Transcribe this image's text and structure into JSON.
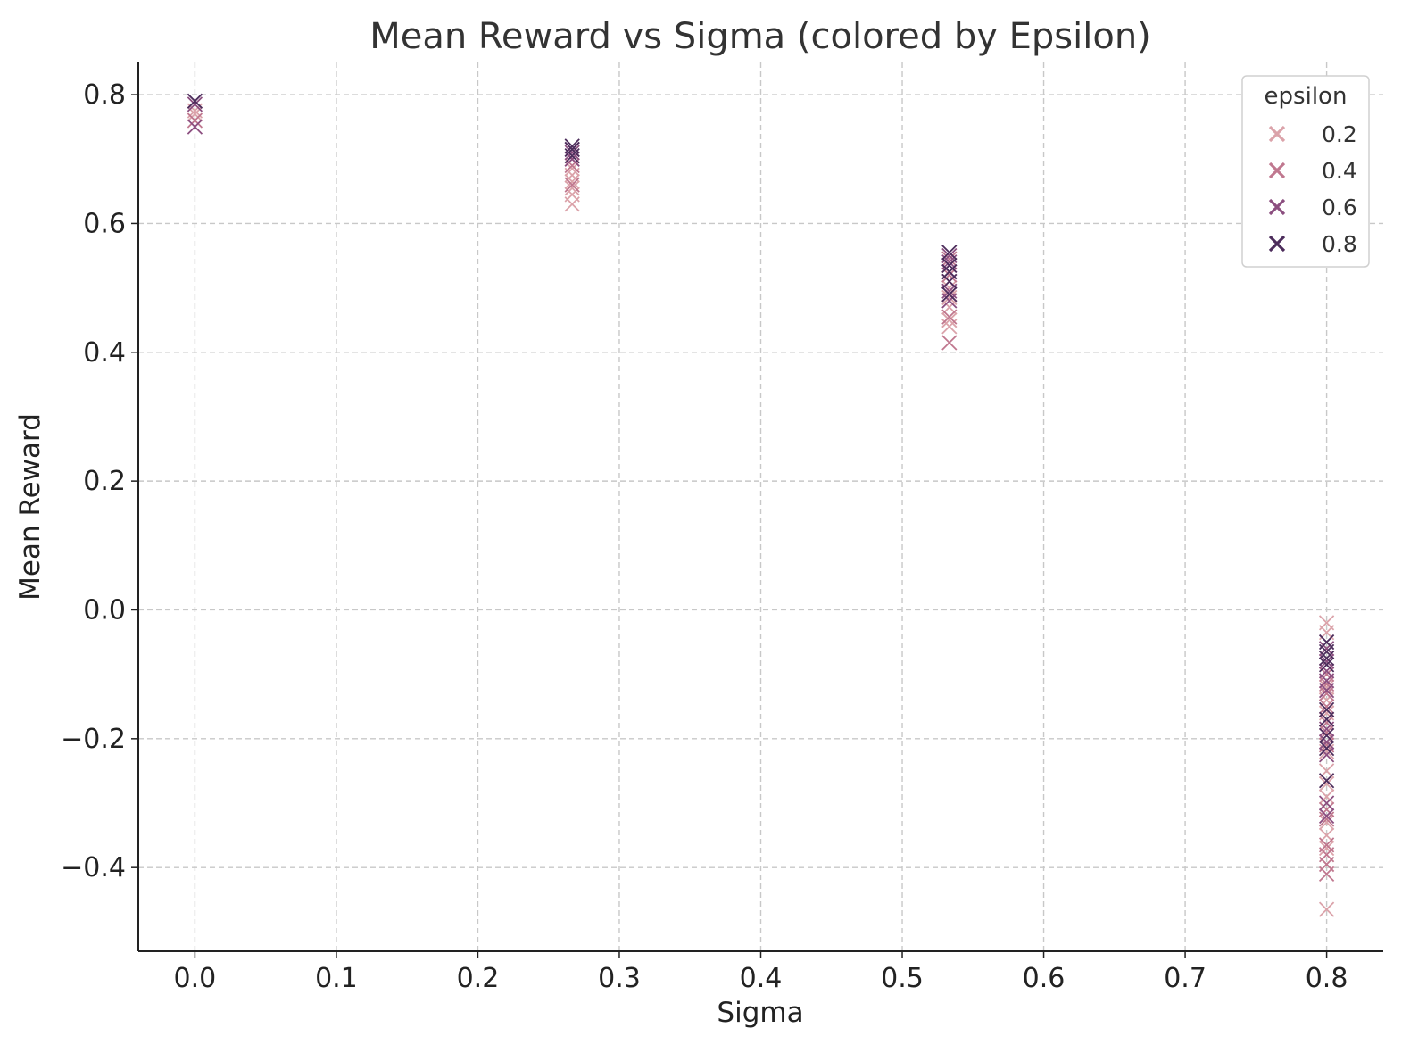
{
  "chart_data": {
    "type": "scatter",
    "title": "Mean Reward vs Sigma (colored by Epsilon)",
    "xlabel": "Sigma",
    "ylabel": "Mean Reward",
    "xlim": [
      -0.04,
      0.84
    ],
    "ylim": [
      -0.53,
      0.85
    ],
    "x_ticks": [
      0.0,
      0.1,
      0.2,
      0.3,
      0.4,
      0.5,
      0.6,
      0.7,
      0.8
    ],
    "x_tick_labels": [
      "0.0",
      "0.1",
      "0.2",
      "0.3",
      "0.4",
      "0.5",
      "0.6",
      "0.7",
      "0.8"
    ],
    "y_ticks": [
      -0.4,
      -0.2,
      0.0,
      0.2,
      0.4,
      0.6,
      0.8
    ],
    "y_tick_labels": [
      "−0.4",
      "−0.2",
      "0.0",
      "0.2",
      "0.4",
      "0.6",
      "0.8"
    ],
    "grid": true,
    "marker": "x",
    "legend": {
      "title": "epsilon",
      "position": "top-right"
    },
    "series": [
      {
        "name": "0.2",
        "color": "#dba3aa",
        "points": [
          [
            0.0,
            0.775
          ],
          [
            0.0,
            0.77
          ],
          [
            0.2667,
            0.63
          ],
          [
            0.2667,
            0.645
          ],
          [
            0.2667,
            0.655
          ],
          [
            0.2667,
            0.665
          ],
          [
            0.2667,
            0.675
          ],
          [
            0.2667,
            0.685
          ],
          [
            0.5333,
            0.44
          ],
          [
            0.5333,
            0.45
          ],
          [
            0.5333,
            0.47
          ],
          [
            0.5333,
            0.485
          ],
          [
            0.5333,
            0.5
          ],
          [
            0.5333,
            0.51
          ],
          [
            0.8,
            -0.02
          ],
          [
            0.8,
            -0.035
          ],
          [
            0.8,
            -0.12
          ],
          [
            0.8,
            -0.14
          ],
          [
            0.8,
            -0.16
          ],
          [
            0.8,
            -0.22
          ],
          [
            0.8,
            -0.25
          ],
          [
            0.8,
            -0.27
          ],
          [
            0.8,
            -0.29
          ],
          [
            0.8,
            -0.33
          ],
          [
            0.8,
            -0.35
          ],
          [
            0.8,
            -0.37
          ],
          [
            0.8,
            -0.465
          ]
        ]
      },
      {
        "name": "0.4",
        "color": "#c0788f",
        "points": [
          [
            0.0,
            0.76
          ],
          [
            0.2667,
            0.66
          ],
          [
            0.2667,
            0.69
          ],
          [
            0.2667,
            0.7
          ],
          [
            0.5333,
            0.415
          ],
          [
            0.5333,
            0.455
          ],
          [
            0.5333,
            0.49
          ],
          [
            0.5333,
            0.52
          ],
          [
            0.5333,
            0.535
          ],
          [
            0.5333,
            0.545
          ],
          [
            0.8,
            -0.1
          ],
          [
            0.8,
            -0.115
          ],
          [
            0.8,
            -0.13
          ],
          [
            0.8,
            -0.15
          ],
          [
            0.8,
            -0.175
          ],
          [
            0.8,
            -0.19
          ],
          [
            0.8,
            -0.21
          ],
          [
            0.8,
            -0.31
          ],
          [
            0.8,
            -0.325
          ],
          [
            0.8,
            -0.365
          ],
          [
            0.8,
            -0.38
          ],
          [
            0.8,
            -0.395
          ],
          [
            0.8,
            -0.41
          ]
        ]
      },
      {
        "name": "0.6",
        "color": "#8c4f80",
        "points": [
          [
            0.0,
            0.75
          ],
          [
            0.0,
            0.785
          ],
          [
            0.2667,
            0.7
          ],
          [
            0.2667,
            0.71
          ],
          [
            0.2667,
            0.715
          ],
          [
            0.5333,
            0.48
          ],
          [
            0.5333,
            0.495
          ],
          [
            0.5333,
            0.525
          ],
          [
            0.5333,
            0.54
          ],
          [
            0.5333,
            0.55
          ],
          [
            0.8,
            -0.06
          ],
          [
            0.8,
            -0.08
          ],
          [
            0.8,
            -0.095
          ],
          [
            0.8,
            -0.11
          ],
          [
            0.8,
            -0.125
          ],
          [
            0.8,
            -0.185
          ],
          [
            0.8,
            -0.205
          ],
          [
            0.8,
            -0.225
          ],
          [
            0.8,
            -0.3
          ],
          [
            0.8,
            -0.32
          ]
        ]
      },
      {
        "name": "0.8",
        "color": "#4d2d5c",
        "points": [
          [
            0.0,
            0.79
          ],
          [
            0.2667,
            0.705
          ],
          [
            0.2667,
            0.715
          ],
          [
            0.2667,
            0.72
          ],
          [
            0.5333,
            0.49
          ],
          [
            0.5333,
            0.51
          ],
          [
            0.5333,
            0.525
          ],
          [
            0.5333,
            0.535
          ],
          [
            0.5333,
            0.555
          ],
          [
            0.8,
            -0.05
          ],
          [
            0.8,
            -0.065
          ],
          [
            0.8,
            -0.075
          ],
          [
            0.8,
            -0.085
          ],
          [
            0.8,
            -0.155
          ],
          [
            0.8,
            -0.17
          ],
          [
            0.8,
            -0.195
          ],
          [
            0.8,
            -0.215
          ],
          [
            0.8,
            -0.265
          ]
        ]
      }
    ]
  }
}
